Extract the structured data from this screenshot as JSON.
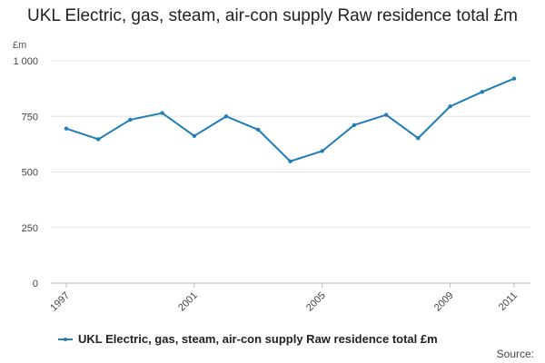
{
  "chart_data": {
    "type": "line",
    "title": "UKL Electric, gas, steam, air-con supply Raw residence total £m",
    "y_unit": "£m",
    "xlabel": "",
    "ylabel": "",
    "x": [
      1997,
      1998,
      1999,
      2000,
      2001,
      2002,
      2003,
      2004,
      2005,
      2006,
      2007,
      2008,
      2009,
      2010,
      2011
    ],
    "x_tick_labels": [
      "1997",
      "2001",
      "2005",
      "2009",
      "2011"
    ],
    "x_tick_values": [
      1997,
      2001,
      2005,
      2009,
      2011
    ],
    "y_ticks": [
      0,
      250,
      500,
      750,
      1000
    ],
    "y_tick_labels": [
      "0",
      "250",
      "500",
      "750",
      "1 000"
    ],
    "ylim": [
      0,
      1000
    ],
    "grid": true,
    "legend_position": "bottom-left",
    "series": [
      {
        "name": "UKL Electric, gas, steam, air-con supply Raw residence total £m",
        "color": "#1f7db9",
        "values": [
          695,
          647,
          735,
          765,
          662,
          750,
          690,
          548,
          594,
          711,
          757,
          652,
          795,
          860,
          920
        ]
      }
    ],
    "source_label": "Source:"
  }
}
